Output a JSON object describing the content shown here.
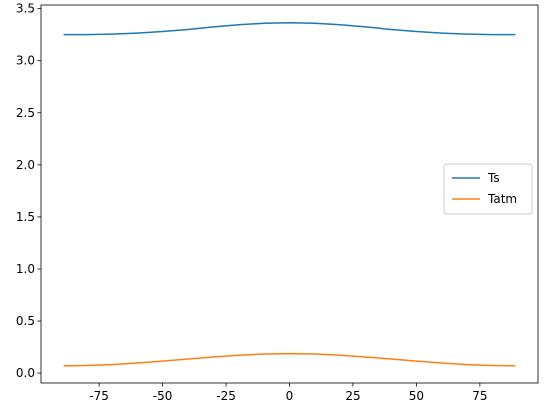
{
  "chart_data": {
    "type": "line",
    "x": [
      -89,
      -80,
      -70,
      -60,
      -50,
      -40,
      -30,
      -20,
      -10,
      0,
      10,
      20,
      30,
      40,
      50,
      60,
      70,
      80,
      89
    ],
    "series": [
      {
        "name": "Ts",
        "color": "#1f77b4",
        "values": [
          3.25,
          3.25,
          3.255,
          3.265,
          3.28,
          3.3,
          3.325,
          3.345,
          3.36,
          3.365,
          3.36,
          3.345,
          3.325,
          3.3,
          3.28,
          3.265,
          3.255,
          3.25,
          3.25
        ]
      },
      {
        "name": "Tatm",
        "color": "#ff7f0e",
        "values": [
          0.07,
          0.073,
          0.082,
          0.097,
          0.115,
          0.135,
          0.155,
          0.172,
          0.183,
          0.187,
          0.183,
          0.172,
          0.155,
          0.135,
          0.115,
          0.097,
          0.082,
          0.073,
          0.07
        ]
      }
    ],
    "xlim": [
      -97.9,
      97.9
    ],
    "xticks": [
      -75,
      -50,
      -25,
      0,
      25,
      50,
      75
    ],
    "ylim": [
      -0.095,
      3.535
    ],
    "yticks": [
      {
        "value": 0,
        "label": "0.0"
      },
      {
        "value": 0.5,
        "label": "0.5"
      },
      {
        "value": 1,
        "label": "1.0"
      },
      {
        "value": 1.5,
        "label": "1.5"
      },
      {
        "value": 2,
        "label": "2.0"
      },
      {
        "value": 2.5,
        "label": "2.5"
      },
      {
        "value": 3,
        "label": "3.0"
      },
      {
        "value": 3.5,
        "label": "3.5"
      }
    ],
    "legend": "center right"
  }
}
